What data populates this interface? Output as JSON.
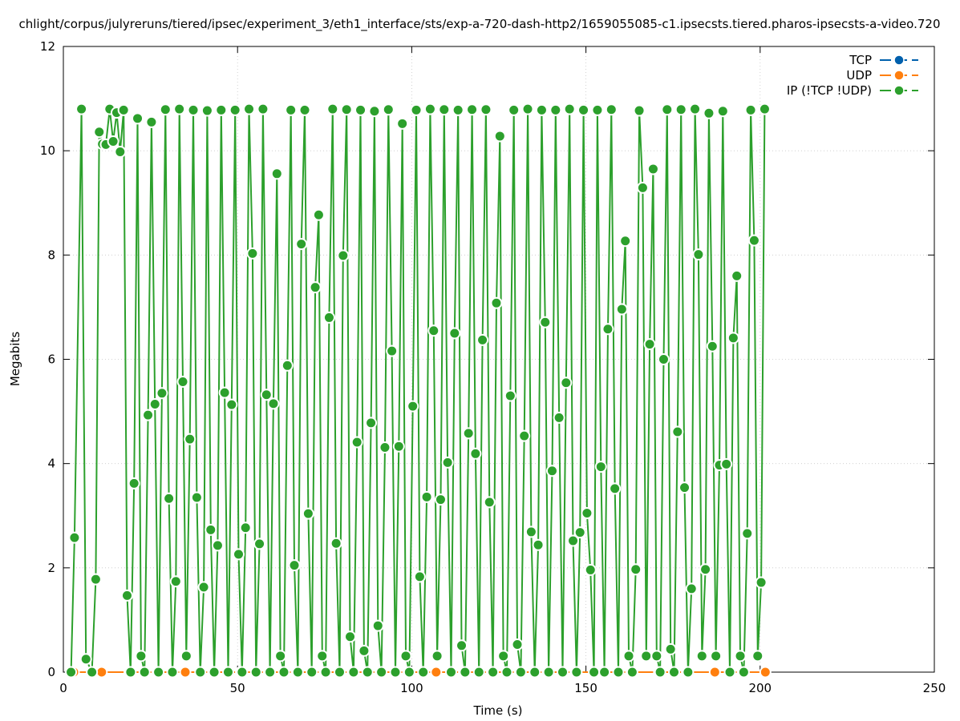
{
  "chart_data": {
    "type": "line",
    "title": "chlight/corpus/julyreruns/tiered/ipsec/experiment_3/eth1_interface/sts/exp-a-720-dash-http2/1659055085-c1.ipsecsts.tiered.pharos-ipsecsts-a-video.720",
    "xlabel": "Time (s)",
    "ylabel": "Megabits",
    "xlim": [
      0,
      250
    ],
    "ylim": [
      0,
      12
    ],
    "x_ticks": [
      0,
      50,
      100,
      150,
      200,
      250
    ],
    "y_ticks": [
      0,
      2,
      4,
      6,
      8,
      10,
      12
    ],
    "grid": true,
    "legend_position": "top-right",
    "colors": {
      "TCP": "#0060ad",
      "UDP": "#ff7f0e",
      "IP": "#2ca02c"
    },
    "legend": [
      "TCP",
      "UDP",
      "IP (!TCP  !UDP)"
    ],
    "series": [
      {
        "name": "TCP",
        "x": [],
        "y": []
      },
      {
        "name": "UDP",
        "x": [
          3,
          11,
          19,
          27,
          35,
          43,
          51,
          59,
          67,
          75,
          83,
          91,
          99,
          107,
          115,
          123,
          131,
          139,
          147,
          155,
          163,
          171,
          179,
          187,
          195,
          201.5
        ],
        "y": [
          0,
          0,
          0,
          0,
          0,
          0,
          0,
          0,
          0,
          0,
          0,
          0,
          0,
          0,
          0,
          0,
          0,
          0,
          0,
          0,
          0,
          0,
          0,
          0,
          0,
          0
        ]
      },
      {
        "name": "IP (!TCP  !UDP)",
        "x": [
          2.2,
          3.2,
          5.2,
          6.5,
          8.2,
          9.3,
          10.3,
          11.2,
          12.2,
          13.3,
          14.3,
          15.3,
          16.3,
          17.3,
          18.3,
          19.3,
          20.3,
          21.3,
          22.3,
          23.3,
          24.3,
          25.3,
          26.3,
          27.3,
          28.3,
          29.3,
          30.3,
          31.3,
          32.3,
          33.3,
          34.3,
          35.3,
          36.3,
          37.3,
          38.3,
          39.3,
          40.3,
          41.3,
          42.3,
          43.3,
          44.3,
          45.3,
          46.3,
          47.3,
          48.3,
          49.3,
          50.3,
          51.3,
          52.3,
          53.3,
          54.3,
          55.3,
          56.3,
          57.3,
          58.3,
          59.3,
          60.3,
          61.3,
          62.3,
          63.3,
          64.3,
          65.3,
          66.3,
          67.3,
          68.3,
          69.3,
          70.3,
          71.3,
          72.3,
          73.3,
          74.3,
          75.3,
          76.3,
          77.3,
          78.3,
          79.3,
          80.3,
          81.3,
          82.3,
          83.3,
          84.3,
          85.3,
          86.3,
          87.3,
          88.3,
          89.3,
          90.3,
          91.3,
          92.3,
          93.3,
          94.3,
          95.3,
          96.3,
          97.3,
          98.3,
          99.3,
          100.3,
          101.3,
          102.3,
          103.3,
          104.3,
          105.3,
          106.3,
          107.3,
          108.3,
          109.3,
          110.3,
          111.3,
          112.3,
          113.3,
          114.3,
          115.3,
          116.3,
          117.3,
          118.3,
          119.3,
          120.3,
          121.3,
          122.3,
          123.3,
          124.3,
          125.3,
          126.3,
          127.3,
          128.3,
          129.3,
          130.3,
          131.3,
          132.3,
          133.3,
          134.3,
          135.3,
          136.3,
          137.3,
          138.3,
          139.3,
          140.3,
          141.3,
          142.3,
          143.3,
          144.3,
          145.3,
          146.3,
          147.3,
          148.3,
          149.3,
          150.3,
          151.3,
          152.3,
          153.3,
          154.3,
          155.3,
          156.3,
          157.3,
          158.3,
          159.3,
          160.3,
          161.3,
          162.3,
          163.3,
          164.3,
          165.3,
          166.3,
          167.3,
          168.3,
          169.3,
          170.3,
          171.3,
          172.3,
          173.3,
          174.3,
          175.3,
          176.3,
          177.3,
          178.3,
          179.3,
          180.3,
          181.3,
          182.3,
          183.3,
          184.3,
          185.3,
          186.3,
          187.3,
          188.3,
          189.3,
          190.3,
          191.3,
          192.3,
          193.3,
          194.3,
          195.3,
          196.3,
          197.3,
          198.3,
          199.3,
          200.3,
          201.3
        ],
        "y": [
          0,
          2.58,
          10.8,
          0.25,
          0,
          1.78,
          10.36,
          10.13,
          10.12,
          10.8,
          10.18,
          10.73,
          9.98,
          10.78,
          1.47,
          0,
          3.62,
          10.62,
          0.31,
          0,
          4.93,
          10.55,
          5.14,
          0,
          5.35,
          10.79,
          3.33,
          0,
          1.74,
          10.8,
          5.57,
          0.31,
          4.47,
          10.78,
          3.35,
          0,
          1.63,
          10.77,
          2.73,
          0,
          2.43,
          10.78,
          5.36,
          0,
          5.13,
          10.78,
          2.26,
          0,
          2.77,
          10.8,
          8.03,
          0,
          2.46,
          10.8,
          5.32,
          0,
          5.15,
          9.56,
          0.31,
          0,
          5.88,
          10.78,
          2.05,
          0,
          8.21,
          10.78,
          3.04,
          0,
          7.38,
          8.77,
          0.31,
          0,
          6.8,
          10.8,
          2.47,
          0,
          7.99,
          10.79,
          0.68,
          0,
          4.41,
          10.78,
          0.41,
          0,
          4.78,
          10.76,
          0.89,
          0,
          4.31,
          10.79,
          6.16,
          0,
          4.33,
          10.52,
          0.31,
          0,
          5.1,
          10.78,
          1.83,
          0,
          3.36,
          10.8,
          6.55,
          0.31,
          3.31,
          10.79,
          4.02,
          0,
          6.5,
          10.78,
          0.51,
          0,
          4.58,
          10.79,
          4.19,
          0,
          6.37,
          10.79,
          3.26,
          0,
          7.08,
          10.28,
          0.31,
          0,
          5.3,
          10.78,
          0.53,
          0,
          4.53,
          10.8,
          2.69,
          0,
          2.44,
          10.78,
          6.71,
          0,
          3.86,
          10.78,
          4.88,
          0,
          5.55,
          10.8,
          2.52,
          0,
          2.68,
          10.78,
          3.05,
          1.96,
          0,
          10.78,
          3.94,
          0,
          6.58,
          10.79,
          3.52,
          0,
          6.96,
          8.27,
          0.31,
          0,
          1.97,
          10.77,
          9.29,
          0.31,
          6.29,
          9.65,
          0.31,
          0,
          6.0,
          10.79,
          0.44,
          0,
          4.61,
          10.79,
          3.54,
          0,
          1.6,
          10.8,
          8.01,
          0.31,
          1.97,
          10.72,
          6.25,
          0.31,
          3.97,
          10.76,
          3.99,
          0,
          6.41,
          7.6,
          0.31,
          0,
          2.66,
          10.78,
          8.28,
          0.31,
          1.72,
          10.8
        ]
      }
    ]
  }
}
